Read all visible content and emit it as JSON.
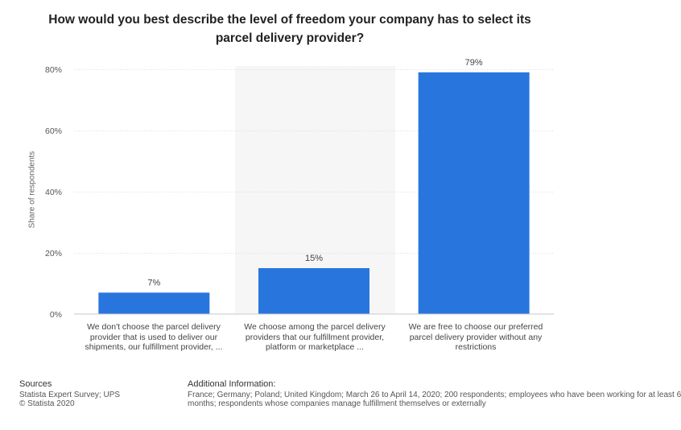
{
  "title_lines": [
    "How would you best describe the level of freedom your company has to select its",
    "parcel delivery provider?"
  ],
  "chart_data": {
    "type": "bar",
    "title": "How would you best describe the level of freedom your company has to select its parcel delivery provider?",
    "xlabel": "",
    "ylabel": "Share of respondents",
    "ylim": [
      0,
      80
    ],
    "yticks": [
      0,
      20,
      40,
      60,
      80
    ],
    "ytick_labels": [
      "0%",
      "20%",
      "40%",
      "60%",
      "80%"
    ],
    "grid": true,
    "categories": [
      [
        "We don't choose the parcel delivery",
        "provider that is used to deliver our",
        "shipments, our fulfillment provider, ..."
      ],
      [
        "We choose among the parcel delivery",
        "providers that our fulfillment provider,",
        "platform or marketplace ..."
      ],
      [
        "We are free to choose our preferred",
        "parcel delivery provider without any",
        "restrictions"
      ]
    ],
    "values": [
      7,
      15,
      79
    ],
    "value_labels": [
      "7%",
      "15%",
      "79%"
    ],
    "bar_color": "#2876dd"
  },
  "footer": {
    "sources_header": "Sources",
    "sources_lines": [
      "Statista Expert Survey; UPS",
      "© Statista 2020"
    ],
    "info_header": "Additional Information:",
    "info_lines": [
      "France; Germany; Poland; United Kingdom; March 26 to April 14, 2020; 200 respondents; employees who have been working for at least 6",
      "months; respondents whose companies manage fulfillment themselves or externally"
    ]
  }
}
